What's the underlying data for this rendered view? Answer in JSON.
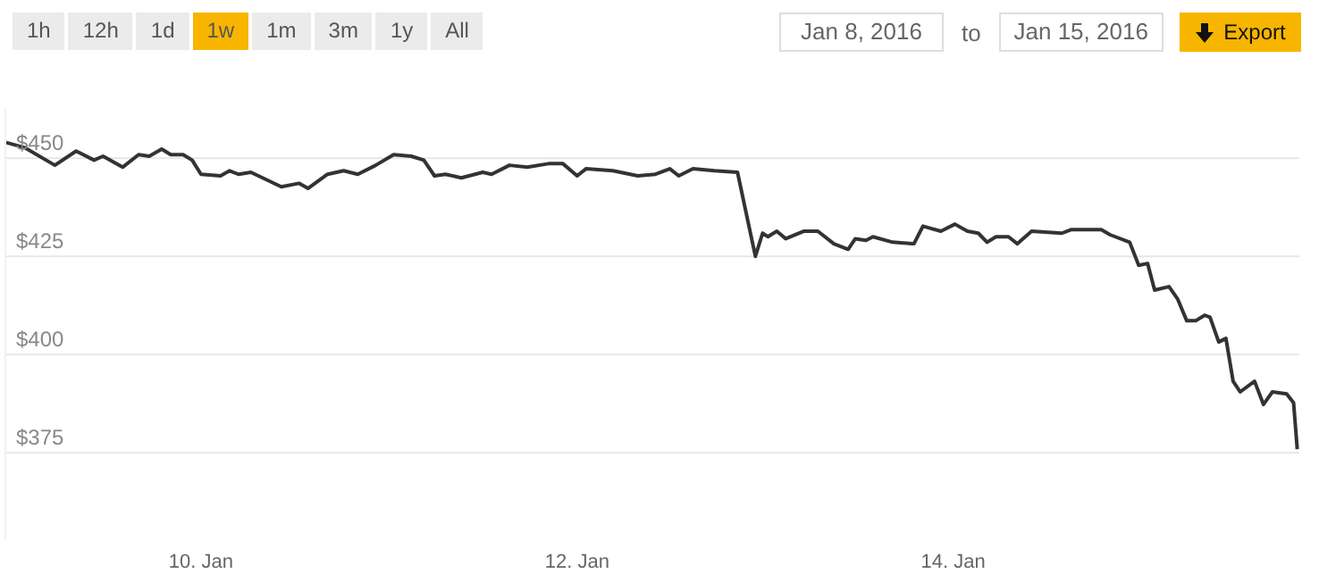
{
  "chart_data": {
    "type": "line",
    "annotations": [
      "1h",
      "12h",
      "1d",
      "1w",
      "1m",
      "3m",
      "1y",
      "All",
      "Jan 8, 2016",
      "to",
      "Jan 15, 2016",
      "Export"
    ],
    "x": [
      "2016-01-08T23:08",
      "2016-01-09T01:29",
      "2016-01-09T05:21",
      "2016-01-09T08:04",
      "2016-01-09T10:21",
      "2016-01-09T11:30",
      "2016-01-09T14:00",
      "2016-01-09T16:02",
      "2016-01-09T17:24",
      "2016-01-09T18:59",
      "2016-01-09T20:08",
      "2016-01-09T21:43",
      "2016-01-09T22:52",
      "2016-01-10T00:00",
      "2016-01-10T02:30",
      "2016-01-10T03:39",
      "2016-01-10T04:47",
      "2016-01-10T06:22",
      "2016-01-10T10:15",
      "2016-01-10T12:30",
      "2016-01-10T13:39",
      "2016-01-10T16:09",
      "2016-01-10T18:12",
      "2016-01-10T20:01",
      "2016-01-10T22:18",
      "2016-01-11T00:35",
      "2016-01-11T02:50",
      "2016-01-11T04:26",
      "2016-01-11T05:48",
      "2016-01-11T07:11",
      "2016-01-11T09:13",
      "2016-01-11T11:57",
      "2016-01-11T13:05",
      "2016-01-11T15:22",
      "2016-01-11T17:38",
      "2016-01-11T20:21",
      "2016-01-11T22:11",
      "2016-01-12T00:00",
      "2016-01-12T01:08",
      "2016-01-12T04:34",
      "2016-01-12T07:44",
      "2016-01-12T10:00",
      "2016-01-12T11:50",
      "2016-01-12T12:58",
      "2016-01-12T14:47",
      "2016-01-12T17:31",
      "2016-01-12T20:28",
      "2016-01-12T22:45",
      "2016-01-12T23:40",
      "2016-01-13T00:20",
      "2016-01-13T01:29",
      "2016-01-13T02:37",
      "2016-01-13T04:54",
      "2016-01-13T06:43",
      "2016-01-13T08:46",
      "2016-01-13T10:35",
      "2016-01-13T11:30",
      "2016-01-13T12:52",
      "2016-01-13T13:45",
      "2016-01-13T16:16",
      "2016-01-13T18:59",
      "2016-01-13T20:08",
      "2016-01-13T22:25",
      "2016-01-14T00:13",
      "2016-01-14T01:49",
      "2016-01-14T03:12",
      "2016-01-14T04:19",
      "2016-01-14T05:27",
      "2016-01-14T07:03",
      "2016-01-14T08:11",
      "2016-01-14T10:00",
      "2016-01-14T13:52",
      "2016-01-14T15:01",
      "2016-01-14T18:53",
      "2016-01-14T20:01",
      "2016-01-14T22:31",
      "2016-01-14T23:40",
      "2016-01-15T00:48",
      "2016-01-15T01:42",
      "2016-01-15T03:32",
      "2016-01-15T04:39",
      "2016-01-15T05:48",
      "2016-01-15T06:56",
      "2016-01-15T08:04",
      "2016-01-15T08:46",
      "2016-01-15T09:53",
      "2016-01-15T10:48",
      "2016-01-15T11:43",
      "2016-01-15T12:37",
      "2016-01-15T14:27",
      "2016-01-15T15:35",
      "2016-01-15T16:44",
      "2016-01-15T18:33",
      "2016-01-15T19:26",
      "2016-01-15T19:54"
    ],
    "series": [
      {
        "color": "#333333",
        "values": [
          454.0,
          452.7,
          448.2,
          451.8,
          449.5,
          450.5,
          447.7,
          450.9,
          450.5,
          452.3,
          450.9,
          450.9,
          449.5,
          445.9,
          445.5,
          446.8,
          445.9,
          446.4,
          442.7,
          443.6,
          442.3,
          445.9,
          446.8,
          445.9,
          448.2,
          450.9,
          450.5,
          449.5,
          445.5,
          445.9,
          445.0,
          446.4,
          445.9,
          448.2,
          447.7,
          448.6,
          448.6,
          445.5,
          447.3,
          446.8,
          445.5,
          445.9,
          447.3,
          445.5,
          447.3,
          446.8,
          446.4,
          425.0,
          430.9,
          430.0,
          431.4,
          429.5,
          431.4,
          431.4,
          428.2,
          426.8,
          429.5,
          429.1,
          430.0,
          428.6,
          428.2,
          432.7,
          431.4,
          433.2,
          431.4,
          430.9,
          428.6,
          430.0,
          430.0,
          428.2,
          431.4,
          430.9,
          431.8,
          431.8,
          430.5,
          428.6,
          422.7,
          423.2,
          416.4,
          417.3,
          414.1,
          408.6,
          408.6,
          410.0,
          409.5,
          403.2,
          404.1,
          393.2,
          390.5,
          393.2,
          387.3,
          390.5,
          390.0,
          387.7,
          375.9
        ]
      }
    ],
    "xlim": [
      "2016-01-08T23:02",
      "2016-01-15T20:10"
    ],
    "xticks": [
      {
        "value": "2016-01-10",
        "label": "10. Jan"
      },
      {
        "value": "2016-01-12",
        "label": "12. Jan"
      },
      {
        "value": "2016-01-14",
        "label": "14. Jan"
      }
    ],
    "ylim": [
      353,
      463
    ],
    "yticks": [
      {
        "value": 375,
        "label": "$375"
      },
      {
        "value": 400,
        "label": "$400"
      },
      {
        "value": 425,
        "label": "$425"
      },
      {
        "value": 450,
        "label": "$450"
      }
    ],
    "grid": "y",
    "marker": "none",
    "line_style": "solid",
    "legend": false
  }
}
